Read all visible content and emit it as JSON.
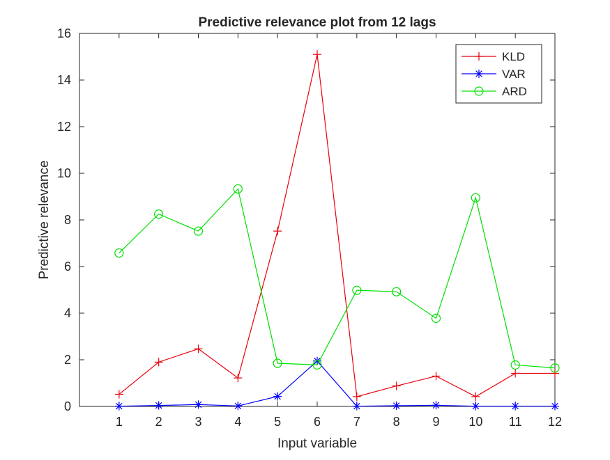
{
  "chart_data": {
    "type": "line",
    "title": "Predictive relevance plot from 12 lags",
    "xlabel": "Input variable",
    "ylabel": "Predictive relevance",
    "x": [
      1,
      2,
      3,
      4,
      5,
      6,
      7,
      8,
      9,
      10,
      11,
      12
    ],
    "xlim": [
      0,
      12
    ],
    "ylim": [
      0,
      16
    ],
    "xticks": [
      "1",
      "2",
      "3",
      "4",
      "5",
      "6",
      "7",
      "8",
      "9",
      "10",
      "11",
      "12"
    ],
    "yticks": [
      "0",
      "2",
      "4",
      "6",
      "8",
      "10",
      "12",
      "14",
      "16"
    ],
    "grid": false,
    "legend_position": "top-right",
    "series": [
      {
        "name": "KLD",
        "color": "#e8000b",
        "marker": "plus",
        "values": [
          0.52,
          1.9,
          2.47,
          1.22,
          7.52,
          15.1,
          0.42,
          0.88,
          1.3,
          0.42,
          1.42,
          1.42
        ]
      },
      {
        "name": "VAR",
        "color": "#0000ff",
        "marker": "asterisk",
        "values": [
          0.01,
          0.04,
          0.08,
          0.02,
          0.43,
          1.95,
          0.01,
          0.03,
          0.05,
          0.01,
          0.01,
          0.01
        ]
      },
      {
        "name": "ARD",
        "color": "#00e000",
        "marker": "circle",
        "values": [
          6.58,
          8.25,
          7.52,
          9.33,
          1.85,
          1.78,
          4.98,
          4.92,
          3.78,
          8.95,
          1.78,
          1.65
        ]
      }
    ]
  }
}
